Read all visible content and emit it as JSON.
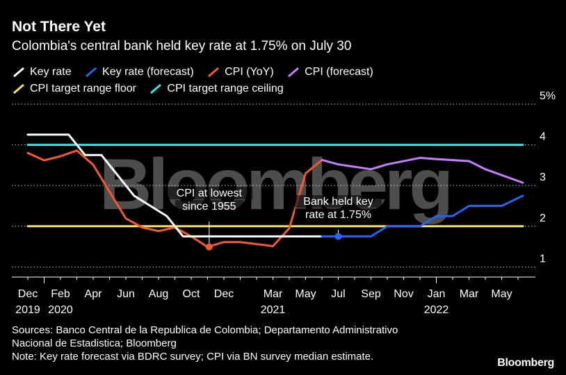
{
  "header": {
    "title": "Not There Yet",
    "subtitle": "Colombia's central bank held key rate at 1.75% on July 30"
  },
  "legend": [
    {
      "label": "Key rate",
      "color": "#ffffff"
    },
    {
      "label": "Key rate (forecast)",
      "color": "#2166f6"
    },
    {
      "label": "CPI (YoY)",
      "color": "#f4592f"
    },
    {
      "label": "CPI (forecast)",
      "color": "#c77dff"
    },
    {
      "label": "CPI target range floor",
      "color": "#fbe25a"
    },
    {
      "label": "CPI target range ceiling",
      "color": "#2ee8ef"
    }
  ],
  "watermark": "Bloomberg",
  "chart_data": {
    "type": "line",
    "title": "Not There Yet",
    "subtitle": "Colombia's central bank held key rate at 1.75% on July 30",
    "x_domain_months": [
      0,
      30
    ],
    "x_note": "months since Dec 2019",
    "ylim": [
      0.75,
      5
    ],
    "y_ticks": [
      {
        "value": 1,
        "label": "1"
      },
      {
        "value": 2,
        "label": "2"
      },
      {
        "value": 3,
        "label": "3"
      },
      {
        "value": 4,
        "label": "4"
      },
      {
        "value": 5,
        "label": "5%"
      }
    ],
    "x_ticks": [
      {
        "x": 0,
        "label": "Dec",
        "year": "2019"
      },
      {
        "x": 2,
        "label": "Feb",
        "year": "2020"
      },
      {
        "x": 4,
        "label": "Apr",
        "year": ""
      },
      {
        "x": 6,
        "label": "Jun",
        "year": ""
      },
      {
        "x": 8,
        "label": "Aug",
        "year": ""
      },
      {
        "x": 10,
        "label": "Oct",
        "year": ""
      },
      {
        "x": 12,
        "label": "Dec",
        "year": ""
      },
      {
        "x": 15,
        "label": "Mar",
        "year": "2021"
      },
      {
        "x": 17,
        "label": "May",
        "year": ""
      },
      {
        "x": 19,
        "label": "Jul",
        "year": ""
      },
      {
        "x": 21,
        "label": "Sep",
        "year": ""
      },
      {
        "x": 23,
        "label": "Nov",
        "year": ""
      },
      {
        "x": 25,
        "label": "Jan",
        "year": "2022"
      },
      {
        "x": 27,
        "label": "Mar",
        "year": ""
      },
      {
        "x": 29,
        "label": "May",
        "year": ""
      }
    ],
    "series": [
      {
        "name": "CPI target range ceiling",
        "color": "#2ee8ef",
        "points": [
          [
            0,
            4
          ],
          [
            30.3,
            4
          ]
        ]
      },
      {
        "name": "CPI target range floor",
        "color": "#fbe25a",
        "points": [
          [
            0,
            2
          ],
          [
            30.3,
            2
          ]
        ]
      },
      {
        "name": "CPI (YoY)",
        "color": "#f4592f",
        "points": [
          [
            0,
            3.8
          ],
          [
            1,
            3.62
          ],
          [
            2,
            3.72
          ],
          [
            3,
            3.86
          ],
          [
            4,
            3.51
          ],
          [
            5,
            2.85
          ],
          [
            6,
            2.19
          ],
          [
            7,
            1.97
          ],
          [
            8,
            1.88
          ],
          [
            9,
            1.97
          ],
          [
            10,
            1.75
          ],
          [
            11,
            1.49
          ],
          [
            12,
            1.61
          ],
          [
            13,
            1.61
          ],
          [
            14,
            1.56
          ],
          [
            15,
            1.51
          ],
          [
            16,
            1.95
          ],
          [
            17,
            3.3
          ],
          [
            18,
            3.63
          ]
        ]
      },
      {
        "name": "Key rate",
        "color": "#ffffff",
        "points": [
          [
            0,
            4.25
          ],
          [
            2.5,
            4.25
          ],
          [
            3.5,
            3.75
          ],
          [
            4.5,
            3.75
          ],
          [
            5.5,
            3.25
          ],
          [
            6.5,
            2.75
          ],
          [
            7.5,
            2.5
          ],
          [
            8.5,
            2.25
          ],
          [
            9.5,
            1.75
          ],
          [
            18,
            1.75
          ]
        ]
      },
      {
        "name": "Key rate (forecast)",
        "color": "#2166f6",
        "points": [
          [
            18,
            1.75
          ],
          [
            21,
            1.75
          ],
          [
            22,
            2.0
          ],
          [
            24,
            2.0
          ],
          [
            25,
            2.25
          ],
          [
            26,
            2.25
          ],
          [
            27,
            2.5
          ],
          [
            29,
            2.5
          ],
          [
            30.3,
            2.75
          ]
        ]
      },
      {
        "name": "CPI (forecast)",
        "color": "#c77dff",
        "points": [
          [
            18,
            3.63
          ],
          [
            19,
            3.52
          ],
          [
            21,
            3.4
          ],
          [
            22,
            3.52
          ],
          [
            24,
            3.68
          ],
          [
            25,
            3.65
          ],
          [
            27,
            3.6
          ],
          [
            28,
            3.4
          ],
          [
            30.3,
            3.07
          ]
        ]
      }
    ],
    "annotations": [
      {
        "id": "cpi-lowest",
        "text_lines": [
          "CPI at lowest",
          "since 1955"
        ],
        "x": 11.1,
        "y": 1.49
      },
      {
        "id": "bank-held",
        "text_lines": [
          "Bank held key",
          "rate at 1.75%"
        ],
        "x": 19,
        "y": 1.75
      }
    ]
  },
  "footer": {
    "sources_line1": "Sources: Banco Central de la Republica de Colombia; Departamento Administrativo",
    "sources_line2": "Nacional de Estadistica; Bloomberg",
    "note": "Note: Key rate forecast via BDRC survey; CPI via BN survey median estimate.",
    "brand": "Bloomberg"
  }
}
